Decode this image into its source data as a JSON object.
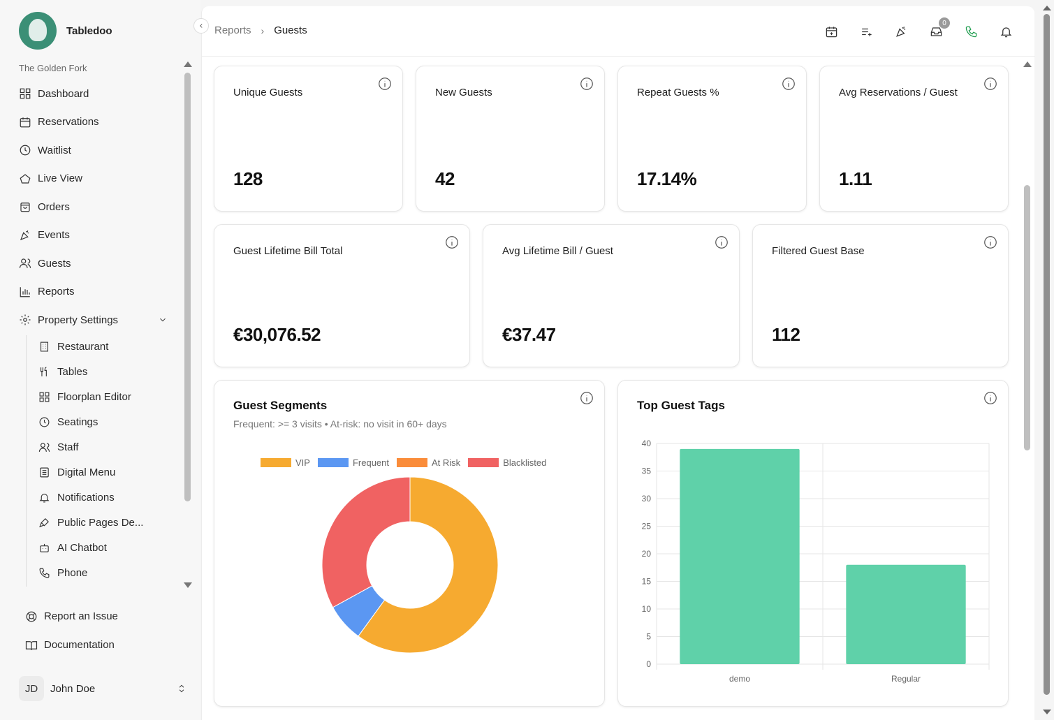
{
  "brand": {
    "name": "Tabledoo",
    "property": "The Golden Fork"
  },
  "nav": {
    "items": [
      {
        "label": "Dashboard",
        "icon": "dashboard-icon"
      },
      {
        "label": "Reservations",
        "icon": "calendar-icon"
      },
      {
        "label": "Waitlist",
        "icon": "clock-icon"
      },
      {
        "label": "Live View",
        "icon": "live-view-icon"
      },
      {
        "label": "Orders",
        "icon": "shopping-bag-icon"
      },
      {
        "label": "Events",
        "icon": "party-icon"
      },
      {
        "label": "Guests",
        "icon": "users-icon"
      },
      {
        "label": "Reports",
        "icon": "bar-chart-icon"
      },
      {
        "label": "Property Settings",
        "icon": "gear-icon"
      }
    ],
    "sub_items": [
      {
        "label": "Restaurant",
        "icon": "building-icon"
      },
      {
        "label": "Tables",
        "icon": "utensils-icon"
      },
      {
        "label": "Floorplan Editor",
        "icon": "grid-icon"
      },
      {
        "label": "Seatings",
        "icon": "clock-icon"
      },
      {
        "label": "Staff",
        "icon": "users-icon"
      },
      {
        "label": "Digital Menu",
        "icon": "menu-icon"
      },
      {
        "label": "Notifications",
        "icon": "bell-icon"
      },
      {
        "label": "Public Pages De...",
        "icon": "brush-icon"
      },
      {
        "label": "AI Chatbot",
        "icon": "bot-icon"
      },
      {
        "label": "Phone",
        "icon": "phone-icon"
      }
    ]
  },
  "footer": {
    "report_issue": "Report an Issue",
    "documentation": "Documentation"
  },
  "user": {
    "initials": "JD",
    "name": "John Doe"
  },
  "breadcrumb": {
    "parent": "Reports",
    "sep": "›",
    "current": "Guests"
  },
  "topbar": {
    "inbox_count": "0"
  },
  "stats_row1": [
    {
      "title": "Unique Guests",
      "value": "128"
    },
    {
      "title": "New Guests",
      "value": "42"
    },
    {
      "title": "Repeat Guests %",
      "value": "17.14%"
    },
    {
      "title": "Avg Reservations / Guest",
      "value": "1.11"
    }
  ],
  "stats_row2": [
    {
      "title": "Guest Lifetime Bill Total",
      "value": "€30,076.52"
    },
    {
      "title": "Avg Lifetime Bill / Guest",
      "value": "€37.47"
    },
    {
      "title": "Filtered Guest Base",
      "value": "112"
    }
  ],
  "segments": {
    "title": "Guest Segments",
    "subtitle": "Frequent: >= 3 visits • At-risk: no visit in 60+ days"
  },
  "tags": {
    "title": "Top Guest Tags"
  },
  "chart_data": [
    {
      "type": "pie",
      "variant": "doughnut",
      "title": "Guest Segments",
      "legend_position": "top",
      "categories": [
        "VIP",
        "Frequent",
        "At Risk",
        "Blacklisted"
      ],
      "values": [
        60,
        7,
        0,
        33
      ],
      "colors": [
        "#f6aa30",
        "#5b97f2",
        "#fa8c3a",
        "#f06262"
      ]
    },
    {
      "type": "bar",
      "title": "Top Guest Tags",
      "categories": [
        "demo",
        "Regular"
      ],
      "values": [
        39,
        18
      ],
      "ylim": [
        0,
        40
      ],
      "yticks": [
        0,
        5,
        10,
        15,
        20,
        25,
        30,
        35,
        40
      ],
      "grid": true,
      "color": "#5fd1a9"
    }
  ]
}
